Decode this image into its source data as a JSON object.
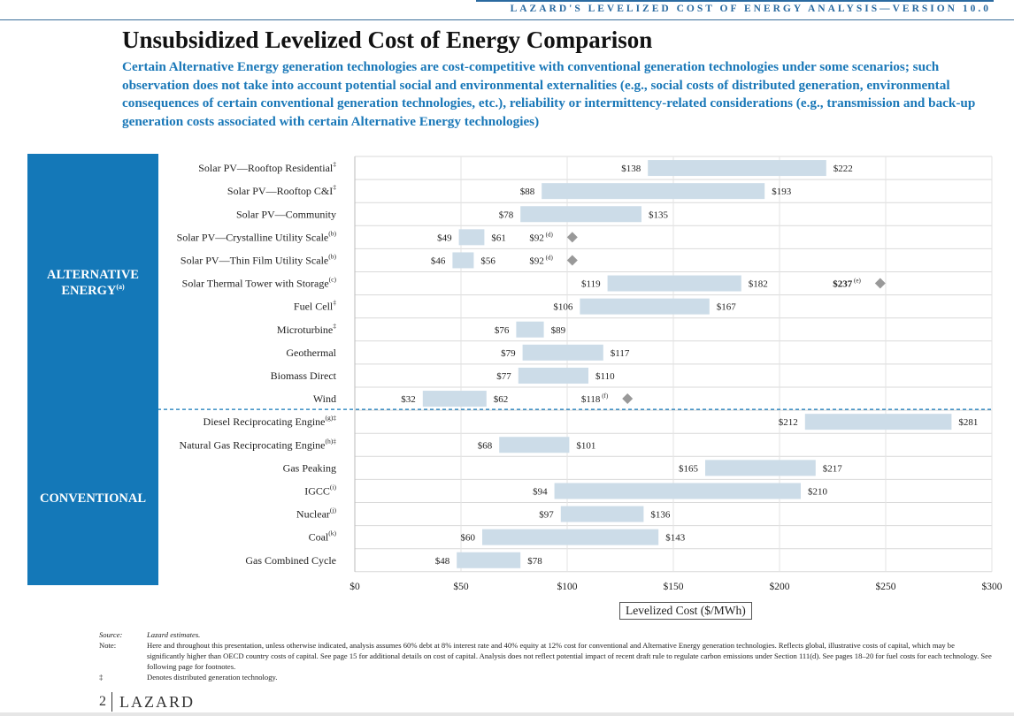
{
  "header": {
    "tag": "LAZARD'S LEVELIZED COST OF ENERGY ANALYSIS—VERSION 10.0"
  },
  "title": "Unsubsidized Levelized Cost of Energy Comparison",
  "subtitle": "Certain Alternative Energy generation technologies are cost-competitive with conventional generation technologies under some scenarios; such observation does not take into account potential social and environmental externalities (e.g., social costs of distributed generation, environmental consequences of certain conventional generation technologies, etc.), reliability or intermittency-related considerations (e.g., transmission and back-up generation costs associated with certain Alternative Energy technologies)",
  "groups": {
    "alternative": {
      "label_line1": "ALTERNATIVE",
      "label_line2": "ENERGY",
      "label_sup": "(a)"
    },
    "conventional": {
      "label": "CONVENTIONAL"
    }
  },
  "colors": {
    "bar": "#ccdce8",
    "diamond": "#999999",
    "band": "#1478b8",
    "divider": "#1478b8"
  },
  "chart_data": {
    "type": "bar",
    "orientation": "horizontal-range",
    "xlabel": "Levelized Cost ($/MWh)",
    "xlim": [
      0,
      300
    ],
    "xticks": [
      0,
      50,
      100,
      150,
      200,
      250,
      300
    ],
    "xtick_labels": [
      "$0",
      "$50",
      "$100",
      "$150",
      "$200",
      "$250",
      "$300"
    ],
    "grid": true,
    "rows": [
      {
        "label": "Solar PV—Rooftop Residential",
        "note": "‡",
        "group": "alternative",
        "low": 138,
        "high": 222,
        "low_label": "$138",
        "high_label": "$222"
      },
      {
        "label": "Solar PV—Rooftop C&I",
        "note": "‡",
        "group": "alternative",
        "low": 88,
        "high": 193,
        "low_label": "$88",
        "high_label": "$193"
      },
      {
        "label": "Solar PV—Community",
        "note": "",
        "group": "alternative",
        "low": 78,
        "high": 135,
        "low_label": "$78",
        "high_label": "$135"
      },
      {
        "label": "Solar PV—Crystalline Utility Scale",
        "note": "(b)",
        "group": "alternative",
        "low": 49,
        "high": 61,
        "low_label": "$49",
        "high_label": "$61",
        "marker": 92,
        "marker_label": "$92",
        "marker_note": "(d)"
      },
      {
        "label": "Solar PV—Thin Film Utility Scale",
        "note": "(b)",
        "group": "alternative",
        "low": 46,
        "high": 56,
        "low_label": "$46",
        "high_label": "$56",
        "marker": 92,
        "marker_label": "$92",
        "marker_note": "(d)"
      },
      {
        "label": "Solar Thermal Tower with Storage",
        "note": "(c)",
        "group": "alternative",
        "low": 119,
        "high": 182,
        "low_label": "$119",
        "high_label": "$182",
        "marker": 237,
        "marker_label": "$237",
        "marker_note": "(e)"
      },
      {
        "label": "Fuel Cell",
        "note": "‡",
        "group": "alternative",
        "low": 106,
        "high": 167,
        "low_label": "$106",
        "high_label": "$167"
      },
      {
        "label": "Microturbine",
        "note": "‡",
        "group": "alternative",
        "low": 76,
        "high": 89,
        "low_label": "$76",
        "high_label": "$89"
      },
      {
        "label": "Geothermal",
        "note": "",
        "group": "alternative",
        "low": 79,
        "high": 117,
        "low_label": "$79",
        "high_label": "$117"
      },
      {
        "label": "Biomass Direct",
        "note": "",
        "group": "alternative",
        "low": 77,
        "high": 110,
        "low_label": "$77",
        "high_label": "$110"
      },
      {
        "label": "Wind",
        "note": "",
        "group": "alternative",
        "low": 32,
        "high": 62,
        "low_label": "$32",
        "high_label": "$62",
        "marker": 118,
        "marker_label": "$118",
        "marker_note": "(f)"
      },
      {
        "label": "Diesel Reciprocating Engine",
        "note": "(g)‡",
        "group": "conventional",
        "low": 212,
        "high": 281,
        "low_label": "$212",
        "high_label": "$281"
      },
      {
        "label": "Natural Gas Reciprocating Engine",
        "note": "(h)‡",
        "group": "conventional",
        "low": 68,
        "high": 101,
        "low_label": "$68",
        "high_label": "$101"
      },
      {
        "label": "Gas Peaking",
        "note": "",
        "group": "conventional",
        "low": 165,
        "high": 217,
        "low_label": "$165",
        "high_label": "$217"
      },
      {
        "label": "IGCC",
        "note": "(i)",
        "group": "conventional",
        "low": 94,
        "high": 210,
        "low_label": "$94",
        "high_label": "$210"
      },
      {
        "label": "Nuclear",
        "note": "(j)",
        "group": "conventional",
        "low": 97,
        "high": 136,
        "low_label": "$97",
        "high_label": "$136"
      },
      {
        "label": "Coal",
        "note": "(k)",
        "group": "conventional",
        "low": 60,
        "high": 143,
        "low_label": "$60",
        "high_label": "$143"
      },
      {
        "label": "Gas Combined Cycle",
        "note": "",
        "group": "conventional",
        "low": 48,
        "high": 78,
        "low_label": "$48",
        "high_label": "$78"
      }
    ]
  },
  "footnotes": [
    {
      "key": "Source:",
      "text": "Lazard estimates.",
      "italic": true
    },
    {
      "key": "Note:",
      "text": "Here and throughout this presentation, unless otherwise indicated, analysis assumes 60% debt at 8% interest rate and 40% equity at 12% cost for conventional and Alternative Energy generation technologies. Reflects global, illustrative costs of capital, which may be significantly higher than OECD country costs of capital. See page 15 for additional details on cost of capital. Analysis does not reflect potential impact of recent draft rule to regulate carbon emissions under Section 111(d). See pages 18–20 for fuel costs for each technology. See following page for footnotes.",
      "italic": false
    },
    {
      "key": "‡",
      "text": "Denotes distributed generation technology.",
      "italic": false
    }
  ],
  "footer": {
    "page": "2",
    "brand": "LAZARD"
  }
}
